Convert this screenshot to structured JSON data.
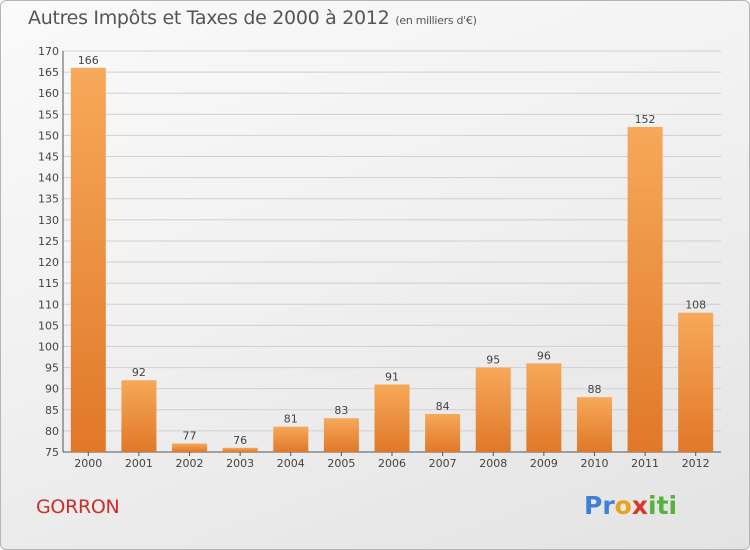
{
  "chart_data": {
    "type": "bar",
    "title": "Autres Impôts et Taxes de 2000 à 2012",
    "subtitle": "(en milliers d'€)",
    "categories": [
      "2000",
      "2001",
      "2002",
      "2003",
      "2004",
      "2005",
      "2006",
      "2007",
      "2008",
      "2009",
      "2010",
      "2011",
      "2012"
    ],
    "values": [
      166,
      92,
      77,
      76,
      81,
      83,
      91,
      84,
      95,
      96,
      88,
      152,
      108
    ],
    "ylim": [
      75,
      170
    ],
    "yticks": [
      75,
      80,
      85,
      90,
      95,
      100,
      105,
      110,
      115,
      120,
      125,
      130,
      135,
      140,
      145,
      150,
      155,
      160,
      165,
      170
    ],
    "grid": true,
    "colors": {
      "bar_light": "#f7a85a",
      "bar_dark": "#e07828",
      "grid": "#d0d0d0"
    }
  },
  "commune": "GORRON",
  "logo": {
    "letters": [
      "P",
      "r",
      "o",
      "x",
      "i",
      "t",
      "i"
    ],
    "colors": [
      "#3f7fd9",
      "#3f7fd9",
      "#e9a21b",
      "#d9362f",
      "#56b23d",
      "#56b23d",
      "#56b23d"
    ]
  }
}
